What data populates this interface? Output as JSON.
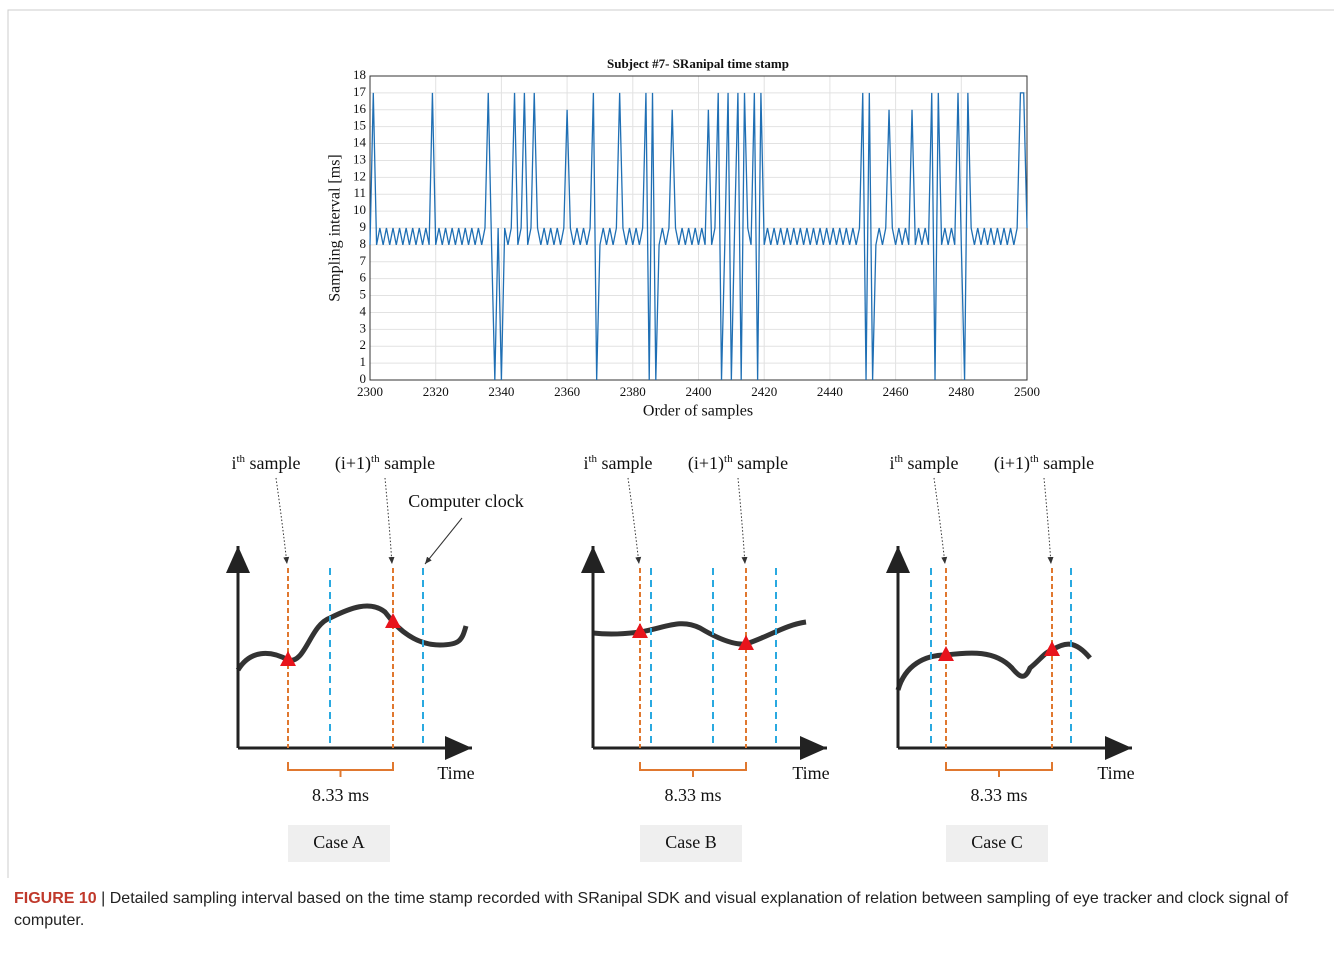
{
  "chart_data": {
    "type": "line",
    "title": "Subject #7- SRanipal time stamp",
    "x_label": "Order of samples",
    "y_label": "Sampling interval [ms]",
    "x": [
      2300,
      2301,
      2302,
      2303,
      2304,
      2305,
      2306,
      2307,
      2308,
      2309,
      2310,
      2311,
      2312,
      2313,
      2314,
      2315,
      2316,
      2317,
      2318,
      2319,
      2320,
      2321,
      2322,
      2323,
      2324,
      2325,
      2326,
      2327,
      2328,
      2329,
      2330,
      2331,
      2332,
      2333,
      2334,
      2335,
      2336,
      2337,
      2338,
      2339,
      2340,
      2341,
      2342,
      2343,
      2344,
      2345,
      2346,
      2347,
      2348,
      2349,
      2350,
      2351,
      2352,
      2353,
      2354,
      2355,
      2356,
      2357,
      2358,
      2359,
      2360,
      2361,
      2362,
      2363,
      2364,
      2365,
      2366,
      2367,
      2368,
      2369,
      2370,
      2371,
      2372,
      2373,
      2374,
      2375,
      2376,
      2377,
      2378,
      2379,
      2380,
      2381,
      2382,
      2383,
      2384,
      2385,
      2386,
      2387,
      2388,
      2389,
      2390,
      2391,
      2392,
      2393,
      2394,
      2395,
      2396,
      2397,
      2398,
      2399,
      2400,
      2401,
      2402,
      2403,
      2404,
      2405,
      2406,
      2407,
      2408,
      2409,
      2410,
      2411,
      2412,
      2413,
      2414,
      2415,
      2416,
      2417,
      2418,
      2419,
      2420,
      2421,
      2422,
      2423,
      2424,
      2425,
      2426,
      2427,
      2428,
      2429,
      2430,
      2431,
      2432,
      2433,
      2434,
      2435,
      2436,
      2437,
      2438,
      2439,
      2440,
      2441,
      2442,
      2443,
      2444,
      2445,
      2446,
      2447,
      2448,
      2449,
      2450,
      2451,
      2452,
      2453,
      2454,
      2455,
      2456,
      2457,
      2458,
      2459,
      2460,
      2461,
      2462,
      2463,
      2464,
      2465,
      2466,
      2467,
      2468,
      2469,
      2470,
      2471,
      2472,
      2473,
      2474,
      2475,
      2476,
      2477,
      2478,
      2479,
      2480,
      2481,
      2482,
      2483,
      2484,
      2485,
      2486,
      2487,
      2488,
      2489,
      2490,
      2491,
      2492,
      2493,
      2494,
      2495,
      2496,
      2497,
      2498,
      2499,
      2500
    ],
    "values": [
      8,
      17,
      8,
      9,
      8,
      9,
      8,
      9,
      8,
      9,
      8,
      9,
      8,
      9,
      8,
      9,
      8,
      9,
      8,
      17,
      8,
      9,
      8,
      9,
      8,
      9,
      8,
      9,
      8,
      9,
      8,
      9,
      8,
      9,
      8,
      9,
      17,
      8,
      0,
      9,
      0,
      9,
      8,
      9,
      17,
      8,
      9,
      17,
      8,
      9,
      17,
      9,
      8,
      9,
      8,
      9,
      8,
      9,
      8,
      9,
      16,
      9,
      8,
      9,
      8,
      9,
      8,
      9,
      17,
      0,
      8,
      9,
      8,
      9,
      8,
      9,
      17,
      9,
      8,
      9,
      8,
      9,
      8,
      9,
      17,
      0,
      17,
      0,
      8,
      9,
      8,
      9,
      16,
      9,
      8,
      9,
      8,
      9,
      8,
      9,
      8,
      9,
      8,
      16,
      8,
      9,
      17,
      0,
      8,
      17,
      0,
      9,
      17,
      0,
      17,
      9,
      8,
      17,
      0,
      17,
      8,
      9,
      8,
      9,
      8,
      9,
      8,
      9,
      8,
      9,
      8,
      9,
      8,
      9,
      8,
      9,
      8,
      9,
      8,
      9,
      8,
      9,
      8,
      9,
      8,
      9,
      8,
      9,
      8,
      9,
      17,
      0,
      17,
      0,
      8,
      9,
      8,
      9,
      16,
      9,
      8,
      9,
      8,
      9,
      8,
      16,
      8,
      9,
      8,
      9,
      8,
      17,
      0,
      17,
      8,
      9,
      8,
      9,
      8,
      17,
      8,
      0,
      17,
      9,
      8,
      9,
      8,
      9,
      8,
      9,
      8,
      9,
      8,
      9,
      8,
      9,
      8,
      9,
      17,
      17,
      9
    ],
    "color": "#1f6fb4",
    "xlim": [
      2300,
      2500
    ],
    "xticks": [
      2300,
      2320,
      2340,
      2360,
      2380,
      2400,
      2420,
      2440,
      2460,
      2480,
      2500
    ],
    "ylim": [
      0,
      18
    ],
    "yticks": [
      0,
      1,
      2,
      3,
      4,
      5,
      6,
      7,
      8,
      9,
      10,
      11,
      12,
      13,
      14,
      15,
      16,
      17,
      18
    ],
    "grid": true
  },
  "diagrams": [
    {
      "sample_i": {
        "base": "i",
        "sup": "th",
        "rest": " sample"
      },
      "sample_next": {
        "base": "(i+1)",
        "sup": "th",
        "rest": " sample"
      },
      "clock": "Computer clock",
      "axis": "Time",
      "interval": "8.33 ms",
      "case": "Case A"
    },
    {
      "sample_i": {
        "base": "i",
        "sup": "th",
        "rest": " sample"
      },
      "sample_next": {
        "base": "(i+1)",
        "sup": "th",
        "rest": " sample"
      },
      "axis": "Time",
      "interval": "8.33 ms",
      "case": "Case B"
    },
    {
      "sample_i": {
        "base": "i",
        "sup": "th",
        "rest": " sample"
      },
      "sample_next": {
        "base": "(i+1)",
        "sup": "th",
        "rest": " sample"
      },
      "axis": "Time",
      "interval": "8.33 ms",
      "case": "Case C"
    }
  ],
  "caption": {
    "label": "FIGURE 10",
    "separator": "|",
    "text": "Detailed sampling interval based on the time stamp recorded with SRanipal SDK and visual explanation of relation between sampling of eye tracker and clock signal of computer."
  }
}
